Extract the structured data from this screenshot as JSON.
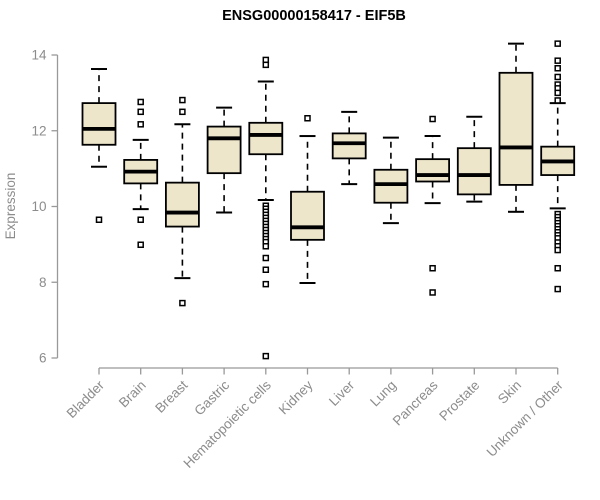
{
  "chart_data": {
    "type": "boxplot",
    "title": "ENSG00000158417 - EIF5B",
    "ylabel": "Expression",
    "xlabel": "",
    "ylim": [
      6,
      14.5
    ],
    "yticks": [
      14,
      12,
      10,
      8,
      6
    ],
    "grid": false,
    "legend": "none",
    "colors": {
      "box_fill": "#EDE6CB",
      "box_border": "#000000",
      "median": "#000000",
      "axis": "#999999",
      "tick_label": "#8c8c8c",
      "title": "#000000"
    },
    "categories": [
      "Bladder",
      "Brain",
      "Breast",
      "Gastric",
      "Hematopoietic cells",
      "Kidney",
      "Liver",
      "Lung",
      "Pancreas",
      "Prostate",
      "Skin",
      "Unknown / Other"
    ],
    "series": [
      {
        "name": "Bladder",
        "low": 11.05,
        "q1": 11.63,
        "median": 12.05,
        "q3": 12.73,
        "high": 13.63,
        "outliers": [
          9.65
        ]
      },
      {
        "name": "Brain",
        "low": 9.93,
        "q1": 10.61,
        "median": 10.92,
        "q3": 11.23,
        "high": 11.76,
        "outliers": [
          12.76,
          12.5,
          12.17,
          9.65,
          8.99
        ]
      },
      {
        "name": "Breast",
        "low": 8.11,
        "q1": 9.47,
        "median": 9.84,
        "q3": 10.63,
        "high": 12.17,
        "outliers": [
          12.81,
          12.5,
          7.45
        ]
      },
      {
        "name": "Gastric",
        "low": 9.84,
        "q1": 10.88,
        "median": 11.8,
        "q3": 12.11,
        "high": 12.61,
        "outliers": []
      },
      {
        "name": "Hematopoietic cells",
        "low": 10.17,
        "q1": 11.38,
        "median": 11.89,
        "q3": 12.21,
        "high": 13.3,
        "outliers": [
          13.87,
          13.74,
          10.02,
          9.94,
          9.86,
          9.78,
          9.7,
          9.62,
          9.54,
          9.46,
          9.38,
          9.3,
          9.22,
          9.14,
          9.06,
          8.95,
          8.64,
          8.33,
          7.95,
          6.05
        ]
      },
      {
        "name": "Kidney",
        "low": 7.98,
        "q1": 9.12,
        "median": 9.45,
        "q3": 10.39,
        "high": 11.86,
        "outliers": [
          12.33
        ]
      },
      {
        "name": "Liver",
        "low": 10.59,
        "q1": 11.27,
        "median": 11.67,
        "q3": 11.93,
        "high": 12.5,
        "outliers": []
      },
      {
        "name": "Lung",
        "low": 9.56,
        "q1": 10.1,
        "median": 10.59,
        "q3": 10.97,
        "high": 11.82,
        "outliers": []
      },
      {
        "name": "Pancreas",
        "low": 10.09,
        "q1": 10.66,
        "median": 10.83,
        "q3": 11.25,
        "high": 11.86,
        "outliers": [
          12.31,
          8.37,
          7.73
        ]
      },
      {
        "name": "Prostate",
        "low": 10.13,
        "q1": 10.32,
        "median": 10.83,
        "q3": 11.54,
        "high": 12.37,
        "outliers": []
      },
      {
        "name": "Skin",
        "low": 9.86,
        "q1": 10.57,
        "median": 11.56,
        "q3": 13.53,
        "high": 14.3,
        "outliers": []
      },
      {
        "name": "Unknown / Other",
        "low": 9.95,
        "q1": 10.83,
        "median": 11.19,
        "q3": 11.58,
        "high": 12.73,
        "outliers": [
          14.3,
          13.85,
          13.65,
          13.42,
          13.22,
          13.12,
          13.0,
          12.8,
          9.8,
          9.72,
          9.64,
          9.56,
          9.48,
          9.4,
          9.32,
          9.24,
          9.16,
          9.05,
          8.95,
          8.85,
          8.37,
          7.82
        ]
      }
    ]
  }
}
